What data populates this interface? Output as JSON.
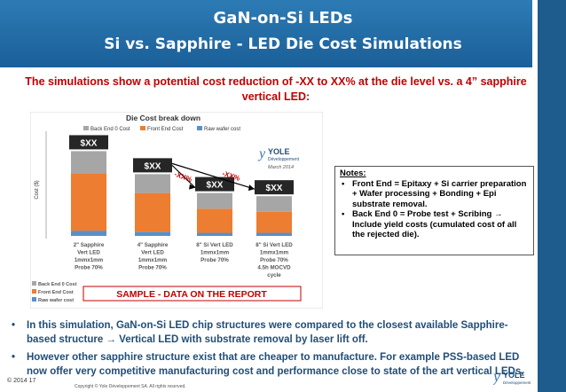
{
  "header": {
    "title": "GaN-on-Si LEDs",
    "subtitle": "Si vs. Sapphire - LED Die Cost Simulations"
  },
  "intro": "The simulations show a potential cost reduction of -XX to XX% at the die level vs. a 4” sapphire vertical LED:",
  "chart_data": {
    "type": "bar",
    "title": "Die Cost break down",
    "ylabel": "Cost ($)",
    "categories": [
      "2\" Sapphire\nVert LED\n1mmx1mm\nProbe 70%",
      "4\" Sapphire\nVert LED\n1mmx1mm\nProbe 70%",
      "8\" Si Vert LED\n1mmx1mm\nProbe 70%",
      "8\" Si Vert LED\n1mmx1mm\nProbe 70%\n4.5h MOCVD\ncycle"
    ],
    "series": [
      {
        "name": "Raw wafer cost",
        "color": "#5a8fc7",
        "values": [
          5,
          4,
          3,
          3
        ]
      },
      {
        "name": "Front End Cost",
        "color": "#ed7d31",
        "values": [
          55,
          37,
          23,
          20
        ]
      },
      {
        "name": "Back End 0 Cost",
        "color": "#a6a6a6",
        "values": [
          21,
          18,
          15,
          15
        ]
      }
    ],
    "bar_labels": [
      "$XX",
      "$XX",
      "$XX",
      "$XX"
    ],
    "annotations": [
      "-XX%",
      "-XX%"
    ],
    "watermark": "SAMPLE - DATA ON THE REPORT",
    "logo": {
      "name": "YOLE",
      "sub": "Développement",
      "date": "March 2014"
    },
    "ylim": [
      0,
      100
    ],
    "grid": false,
    "legend_position": "top",
    "table_legend": [
      "Back End 0 Cost",
      "Front End Cost",
      "Raw wafer cost"
    ]
  },
  "notes": {
    "title": "Notes:",
    "items": [
      "Front End = Epitaxy + Si carrier preparation + Wafer processing + Bonding + Epi substrate removal.",
      "Back End 0 = Probe test + Scribing → Include yield costs (cumulated cost of all the rejected die)."
    ]
  },
  "bullets": [
    "In this simulation, GaN-on-Si LED chip structures were compared to the closest available Sapphire-based structure → Vertical LED with substrate removal by laser lift off.",
    "However other sapphire structure exist that are cheaper to manufacture. For example PSS-based LED now offer very competitive manufacturing cost and performance close to state of the art vertical LEDs."
  ],
  "footer": {
    "left": "© 2014   17",
    "copyright": "Copyright © Yole Développement SA. All rights reserved.",
    "logo": "YOLE",
    "logo_sub": "Développement"
  },
  "colors": {
    "header": "#1f5c8e",
    "intro": "#c00000",
    "bullets": "#1f4e79",
    "annot": "#c00000"
  }
}
